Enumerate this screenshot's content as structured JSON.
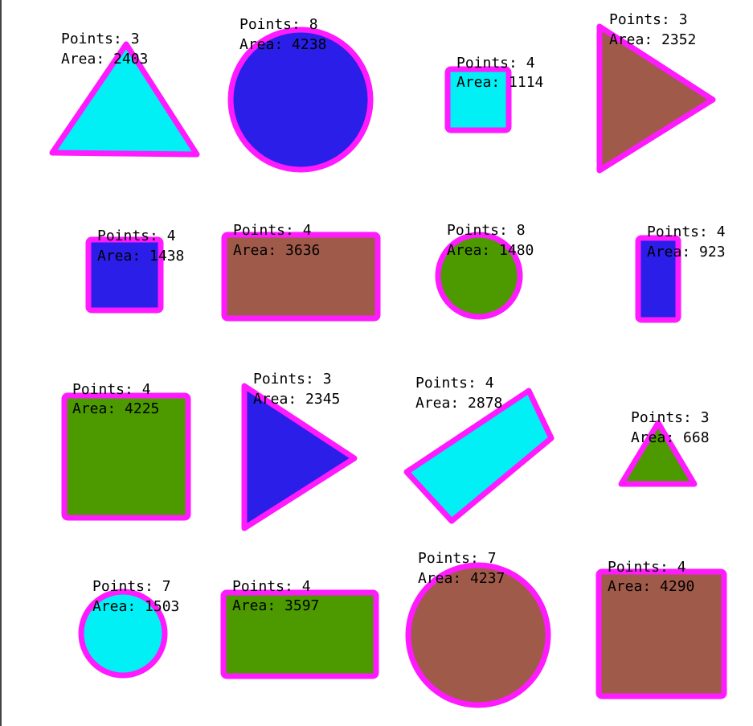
{
  "colors": {
    "outline": "#ff1aff",
    "cyan": "#00f0f5",
    "blue": "#2a1ee8",
    "green": "#4c9a00",
    "brown": "#a05a4a",
    "label": "#000000"
  },
  "shapes": [
    {
      "id": "triangle-1",
      "kind": "triangle",
      "fill": "cyan",
      "points_text": "Points: 3",
      "area_text": "Area: 2403"
    },
    {
      "id": "circle-1",
      "kind": "circle",
      "fill": "blue",
      "points_text": "Points: 8",
      "area_text": "Area: 4238"
    },
    {
      "id": "square-1",
      "kind": "rect",
      "fill": "cyan",
      "points_text": "Points: 4",
      "area_text": "Area: 1114"
    },
    {
      "id": "triangle-2",
      "kind": "triangle",
      "fill": "brown",
      "points_text": "Points: 3",
      "area_text": "Area: 2352"
    },
    {
      "id": "square-2",
      "kind": "rect",
      "fill": "blue",
      "points_text": "Points: 4",
      "area_text": "Area: 1438"
    },
    {
      "id": "rect-1",
      "kind": "rect",
      "fill": "brown",
      "points_text": "Points: 4",
      "area_text": "Area: 3636"
    },
    {
      "id": "circle-2",
      "kind": "circle",
      "fill": "green",
      "points_text": "Points: 8",
      "area_text": "Area: 1480"
    },
    {
      "id": "rect-2",
      "kind": "rect",
      "fill": "blue",
      "points_text": "Points: 4",
      "area_text": "Area: 923"
    },
    {
      "id": "square-3",
      "kind": "rect",
      "fill": "green",
      "points_text": "Points: 4",
      "area_text": "Area: 4225"
    },
    {
      "id": "triangle-3",
      "kind": "triangle",
      "fill": "blue",
      "points_text": "Points: 3",
      "area_text": "Area: 2345"
    },
    {
      "id": "rect-3",
      "kind": "rect",
      "fill": "cyan",
      "points_text": "Points: 4",
      "area_text": "Area: 2878"
    },
    {
      "id": "triangle-4",
      "kind": "triangle",
      "fill": "green",
      "points_text": "Points: 3",
      "area_text": "Area: 668"
    },
    {
      "id": "circle-3",
      "kind": "circle",
      "fill": "cyan",
      "points_text": "Points: 7",
      "area_text": "Area: 1503"
    },
    {
      "id": "rect-4",
      "kind": "rect",
      "fill": "green",
      "points_text": "Points: 4",
      "area_text": "Area: 3597"
    },
    {
      "id": "circle-4",
      "kind": "circle",
      "fill": "brown",
      "points_text": "Points: 7",
      "area_text": "Area: 4237"
    },
    {
      "id": "square-4",
      "kind": "rect",
      "fill": "brown",
      "points_text": "Points: 4",
      "area_text": "Area: 4290"
    }
  ]
}
